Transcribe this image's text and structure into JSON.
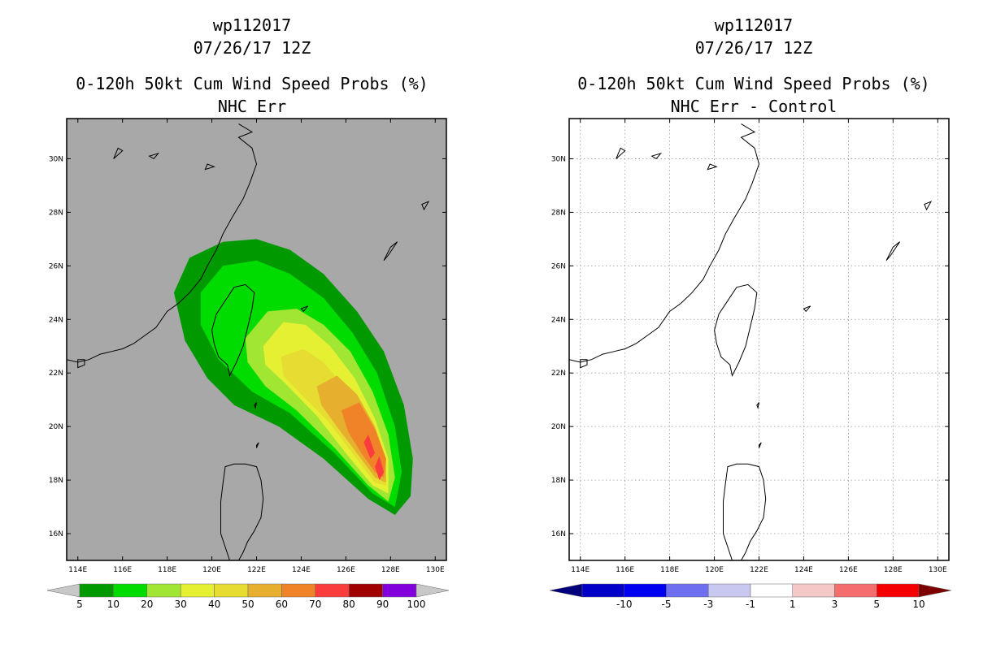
{
  "chart_data": [
    {
      "type": "heatmap",
      "storm_id": "wp112017",
      "date": "07/26/17 12Z",
      "title": "0-120h 50kt Cum Wind Speed Probs (%)",
      "subtitle": "NHC Err",
      "xlabel": "",
      "ylabel": "",
      "xlim": [
        113.5,
        130.5
      ],
      "ylim": [
        15.0,
        31.5
      ],
      "x_ticks": [
        114,
        116,
        118,
        120,
        122,
        124,
        126,
        128,
        130
      ],
      "x_tick_labels": [
        "114E",
        "116E",
        "118E",
        "120E",
        "122E",
        "124E",
        "126E",
        "128E",
        "130E"
      ],
      "y_ticks": [
        16,
        18,
        20,
        22,
        24,
        26,
        28,
        30
      ],
      "y_tick_labels": [
        "16N",
        "18N",
        "20N",
        "22N",
        "24N",
        "26N",
        "28N",
        "30N"
      ],
      "background_color": "#a8a8a8",
      "grid": false,
      "colorbar": {
        "levels": [
          "5",
          "10",
          "20",
          "30",
          "40",
          "50",
          "60",
          "70",
          "80",
          "90",
          "100"
        ],
        "colors": [
          "#009a00",
          "#00dc00",
          "#a0e632",
          "#e6f032",
          "#e6dc32",
          "#e6af2d",
          "#f08228",
          "#fa3c3c",
          "#a00000",
          "#8200dc"
        ],
        "under_color": "#c8c8c8",
        "over_color": "#c8c8c8"
      },
      "probability_contours": [
        {
          "level": 5,
          "color": "#009a00",
          "polygon": [
            [
              118.3,
              25.0
            ],
            [
              119.0,
              26.3
            ],
            [
              120.5,
              26.9
            ],
            [
              122.0,
              27.0
            ],
            [
              123.5,
              26.6
            ],
            [
              125.0,
              25.7
            ],
            [
              126.5,
              24.3
            ],
            [
              127.7,
              22.8
            ],
            [
              128.6,
              20.8
            ],
            [
              129.0,
              18.8
            ],
            [
              128.9,
              17.4
            ],
            [
              128.2,
              16.7
            ],
            [
              127.0,
              17.3
            ],
            [
              125.0,
              18.8
            ],
            [
              123.0,
              20.0
            ],
            [
              121.0,
              20.8
            ],
            [
              119.8,
              21.8
            ],
            [
              118.8,
              23.2
            ]
          ]
        },
        {
          "level": 10,
          "color": "#00dc00",
          "polygon": [
            [
              119.5,
              25.0
            ],
            [
              120.5,
              26.0
            ],
            [
              122.0,
              26.2
            ],
            [
              123.5,
              25.7
            ],
            [
              125.0,
              24.8
            ],
            [
              126.3,
              23.5
            ],
            [
              127.4,
              22.0
            ],
            [
              128.2,
              20.0
            ],
            [
              128.5,
              18.3
            ],
            [
              128.2,
              17.0
            ],
            [
              127.2,
              17.5
            ],
            [
              125.5,
              19.0
            ],
            [
              123.5,
              20.5
            ],
            [
              121.8,
              21.3
            ],
            [
              120.3,
              22.5
            ],
            [
              119.5,
              23.8
            ]
          ]
        },
        {
          "level": 20,
          "color": "#a0e632",
          "polygon": [
            [
              121.5,
              23.3
            ],
            [
              122.5,
              24.3
            ],
            [
              123.8,
              24.4
            ],
            [
              125.0,
              23.8
            ],
            [
              126.2,
              22.8
            ],
            [
              127.2,
              21.3
            ],
            [
              127.9,
              19.7
            ],
            [
              128.2,
              18.1
            ],
            [
              127.9,
              17.2
            ],
            [
              127.0,
              17.8
            ],
            [
              125.5,
              19.2
            ],
            [
              123.8,
              20.6
            ],
            [
              122.4,
              21.5
            ],
            [
              121.6,
              22.4
            ]
          ]
        },
        {
          "level": 30,
          "color": "#e6f032",
          "polygon": [
            [
              122.3,
              23.0
            ],
            [
              123.2,
              23.9
            ],
            [
              124.2,
              23.8
            ],
            [
              125.3,
              23.0
            ],
            [
              126.4,
              21.8
            ],
            [
              127.3,
              20.3
            ],
            [
              127.9,
              18.8
            ],
            [
              127.9,
              17.5
            ],
            [
              127.2,
              17.8
            ],
            [
              126.0,
              19.0
            ],
            [
              124.7,
              20.4
            ],
            [
              123.3,
              21.6
            ],
            [
              122.4,
              22.3
            ]
          ]
        },
        {
          "level": 40,
          "color": "#e6dc32",
          "polygon": [
            [
              123.1,
              22.6
            ],
            [
              124.1,
              22.9
            ],
            [
              125.0,
              22.4
            ],
            [
              126.0,
              21.4
            ],
            [
              126.9,
              20.1
            ],
            [
              127.6,
              18.8
            ],
            [
              127.8,
              17.8
            ],
            [
              127.3,
              17.9
            ],
            [
              126.3,
              19.0
            ],
            [
              125.2,
              20.2
            ],
            [
              124.0,
              21.2
            ],
            [
              123.2,
              21.9
            ]
          ]
        },
        {
          "level": 50,
          "color": "#e6af2d",
          "polygon": [
            [
              124.7,
              21.5
            ],
            [
              125.6,
              21.9
            ],
            [
              126.5,
              21.2
            ],
            [
              127.3,
              20.0
            ],
            [
              127.8,
              18.8
            ],
            [
              127.8,
              17.9
            ],
            [
              127.3,
              18.1
            ],
            [
              126.5,
              19.0
            ],
            [
              125.6,
              20.0
            ],
            [
              124.9,
              20.8
            ]
          ]
        },
        {
          "level": 60,
          "color": "#f08228",
          "polygon": [
            [
              125.8,
              20.6
            ],
            [
              126.6,
              20.9
            ],
            [
              127.3,
              19.9
            ],
            [
              127.8,
              18.8
            ],
            [
              127.7,
              18.1
            ],
            [
              127.3,
              18.3
            ],
            [
              126.7,
              19.0
            ],
            [
              126.1,
              19.8
            ]
          ]
        },
        {
          "level": 70,
          "color": "#fa3c3c",
          "polygon": [
            [
              126.8,
              19.4
            ],
            [
              127.0,
              19.7
            ],
            [
              127.3,
              19.0
            ],
            [
              127.1,
              18.8
            ]
          ]
        },
        {
          "level": 70,
          "color": "#fa3c3c",
          "polygon": [
            [
              127.3,
              18.5
            ],
            [
              127.5,
              18.9
            ],
            [
              127.7,
              18.3
            ],
            [
              127.5,
              18.0
            ]
          ]
        }
      ]
    },
    {
      "type": "heatmap",
      "storm_id": "wp112017",
      "date": "07/26/17 12Z",
      "title": "0-120h 50kt Cum Wind Speed Probs (%)",
      "subtitle": "NHC Err - Control",
      "xlabel": "",
      "ylabel": "",
      "xlim": [
        113.5,
        130.5
      ],
      "ylim": [
        15.0,
        31.5
      ],
      "x_ticks": [
        114,
        116,
        118,
        120,
        122,
        124,
        126,
        128,
        130
      ],
      "x_tick_labels": [
        "114E",
        "116E",
        "118E",
        "120E",
        "122E",
        "124E",
        "126E",
        "128E",
        "130E"
      ],
      "y_ticks": [
        16,
        18,
        20,
        22,
        24,
        26,
        28,
        30
      ],
      "y_tick_labels": [
        "16N",
        "18N",
        "20N",
        "22N",
        "24N",
        "26N",
        "28N",
        "30N"
      ],
      "background_color": "#ffffff",
      "grid": true,
      "colorbar": {
        "levels": [
          "-10",
          "-5",
          "-3",
          "-1",
          "1",
          "3",
          "5",
          "10"
        ],
        "colors": [
          "#0000c8",
          "#0000f0",
          "#6e6ef0",
          "#c8c8f0",
          "#ffffff",
          "#f5c8c8",
          "#f56e6e",
          "#f50000"
        ],
        "under_color": "#00007d",
        "over_color": "#7d0000"
      },
      "probability_contours": []
    }
  ],
  "coastlines": {
    "mainland": [
      [
        113.5,
        22.5
      ],
      [
        114.0,
        22.4
      ],
      [
        114.5,
        22.5
      ],
      [
        115.0,
        22.7
      ],
      [
        115.5,
        22.8
      ],
      [
        116.0,
        22.9
      ],
      [
        116.5,
        23.1
      ],
      [
        117.0,
        23.4
      ],
      [
        117.5,
        23.7
      ],
      [
        118.0,
        24.3
      ],
      [
        118.5,
        24.6
      ],
      [
        119.0,
        25.0
      ],
      [
        119.5,
        25.5
      ],
      [
        119.8,
        26.0
      ],
      [
        120.2,
        26.6
      ],
      [
        120.5,
        27.2
      ],
      [
        120.9,
        27.8
      ],
      [
        121.4,
        28.5
      ],
      [
        121.7,
        29.1
      ],
      [
        122.0,
        29.8
      ],
      [
        121.8,
        30.4
      ],
      [
        121.2,
        30.8
      ],
      [
        121.8,
        31.0
      ],
      [
        121.2,
        31.3
      ]
    ],
    "taiwan": [
      [
        121.0,
        25.2
      ],
      [
        121.5,
        25.3
      ],
      [
        121.9,
        25.0
      ],
      [
        121.8,
        24.4
      ],
      [
        121.6,
        23.7
      ],
      [
        121.4,
        23.0
      ],
      [
        121.1,
        22.4
      ],
      [
        120.8,
        21.9
      ],
      [
        120.7,
        22.3
      ],
      [
        120.3,
        22.6
      ],
      [
        120.1,
        23.1
      ],
      [
        120.0,
        23.6
      ],
      [
        120.2,
        24.2
      ],
      [
        120.6,
        24.7
      ]
    ],
    "luzon": [
      [
        120.6,
        18.5
      ],
      [
        121.0,
        18.6
      ],
      [
        121.5,
        18.6
      ],
      [
        122.0,
        18.5
      ],
      [
        122.2,
        18.0
      ],
      [
        122.3,
        17.3
      ],
      [
        122.2,
        16.6
      ],
      [
        121.9,
        16.1
      ],
      [
        121.6,
        15.7
      ],
      [
        121.4,
        15.3
      ],
      [
        121.2,
        15.0
      ],
      [
        120.8,
        15.0
      ],
      [
        120.6,
        15.5
      ],
      [
        120.4,
        16.0
      ],
      [
        120.4,
        16.5
      ],
      [
        120.4,
        17.2
      ],
      [
        120.5,
        17.9
      ]
    ],
    "islands": [
      [
        [
          127.7,
          26.2
        ],
        [
          128.0,
          26.7
        ],
        [
          128.3,
          26.9
        ],
        [
          127.9,
          26.4
        ]
      ],
      [
        [
          129.5,
          28.1
        ],
        [
          129.7,
          28.4
        ],
        [
          129.4,
          28.3
        ]
      ],
      [
        [
          124.1,
          24.3
        ],
        [
          124.3,
          24.5
        ],
        [
          124.0,
          24.4
        ]
      ],
      [
        [
          121.9,
          20.8
        ],
        [
          122.0,
          20.9
        ],
        [
          121.95,
          20.7
        ]
      ],
      [
        [
          122.0,
          19.3
        ],
        [
          122.1,
          19.4
        ],
        [
          122.0,
          19.2
        ]
      ],
      [
        [
          114.0,
          22.2
        ],
        [
          114.3,
          22.3
        ],
        [
          114.3,
          22.5
        ],
        [
          114.0,
          22.5
        ]
      ],
      [
        [
          115.6,
          30.0
        ],
        [
          116.0,
          30.3
        ],
        [
          115.8,
          30.4
        ]
      ],
      [
        [
          117.2,
          30.1
        ],
        [
          117.6,
          30.2
        ],
        [
          117.4,
          30.0
        ]
      ],
      [
        [
          119.7,
          29.6
        ],
        [
          120.1,
          29.7
        ],
        [
          119.8,
          29.8
        ]
      ]
    ]
  }
}
